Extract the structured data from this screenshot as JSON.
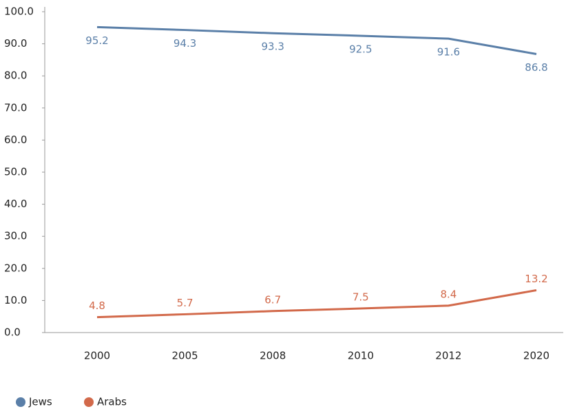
{
  "chart_data": {
    "type": "line",
    "categories": [
      "2000",
      "2005",
      "2008",
      "2010",
      "2012",
      "2020"
    ],
    "series": [
      {
        "name": "Jews",
        "color": "#5a7fa8",
        "values": [
          95.2,
          94.3,
          93.3,
          92.5,
          91.6,
          86.8
        ]
      },
      {
        "name": "Arabs",
        "color": "#d2694a",
        "values": [
          4.8,
          5.7,
          6.7,
          7.5,
          8.4,
          13.2
        ]
      }
    ],
    "ylim": [
      0,
      100
    ],
    "yticks": [
      {
        "value": 0,
        "label": "0.0"
      },
      {
        "value": 10,
        "label": "10.0"
      },
      {
        "value": 20,
        "label": "20.0"
      },
      {
        "value": 30,
        "label": "30.0"
      },
      {
        "value": 40,
        "label": "40.0"
      },
      {
        "value": 50,
        "label": "50.0"
      },
      {
        "value": 60,
        "label": "60.0"
      },
      {
        "value": 70,
        "label": "70.0"
      },
      {
        "value": 80,
        "label": "80.0"
      },
      {
        "value": 90,
        "label": "90.0"
      },
      {
        "value": 100,
        "label": "100.0"
      }
    ],
    "grid": false,
    "legend": "bottom-left"
  }
}
